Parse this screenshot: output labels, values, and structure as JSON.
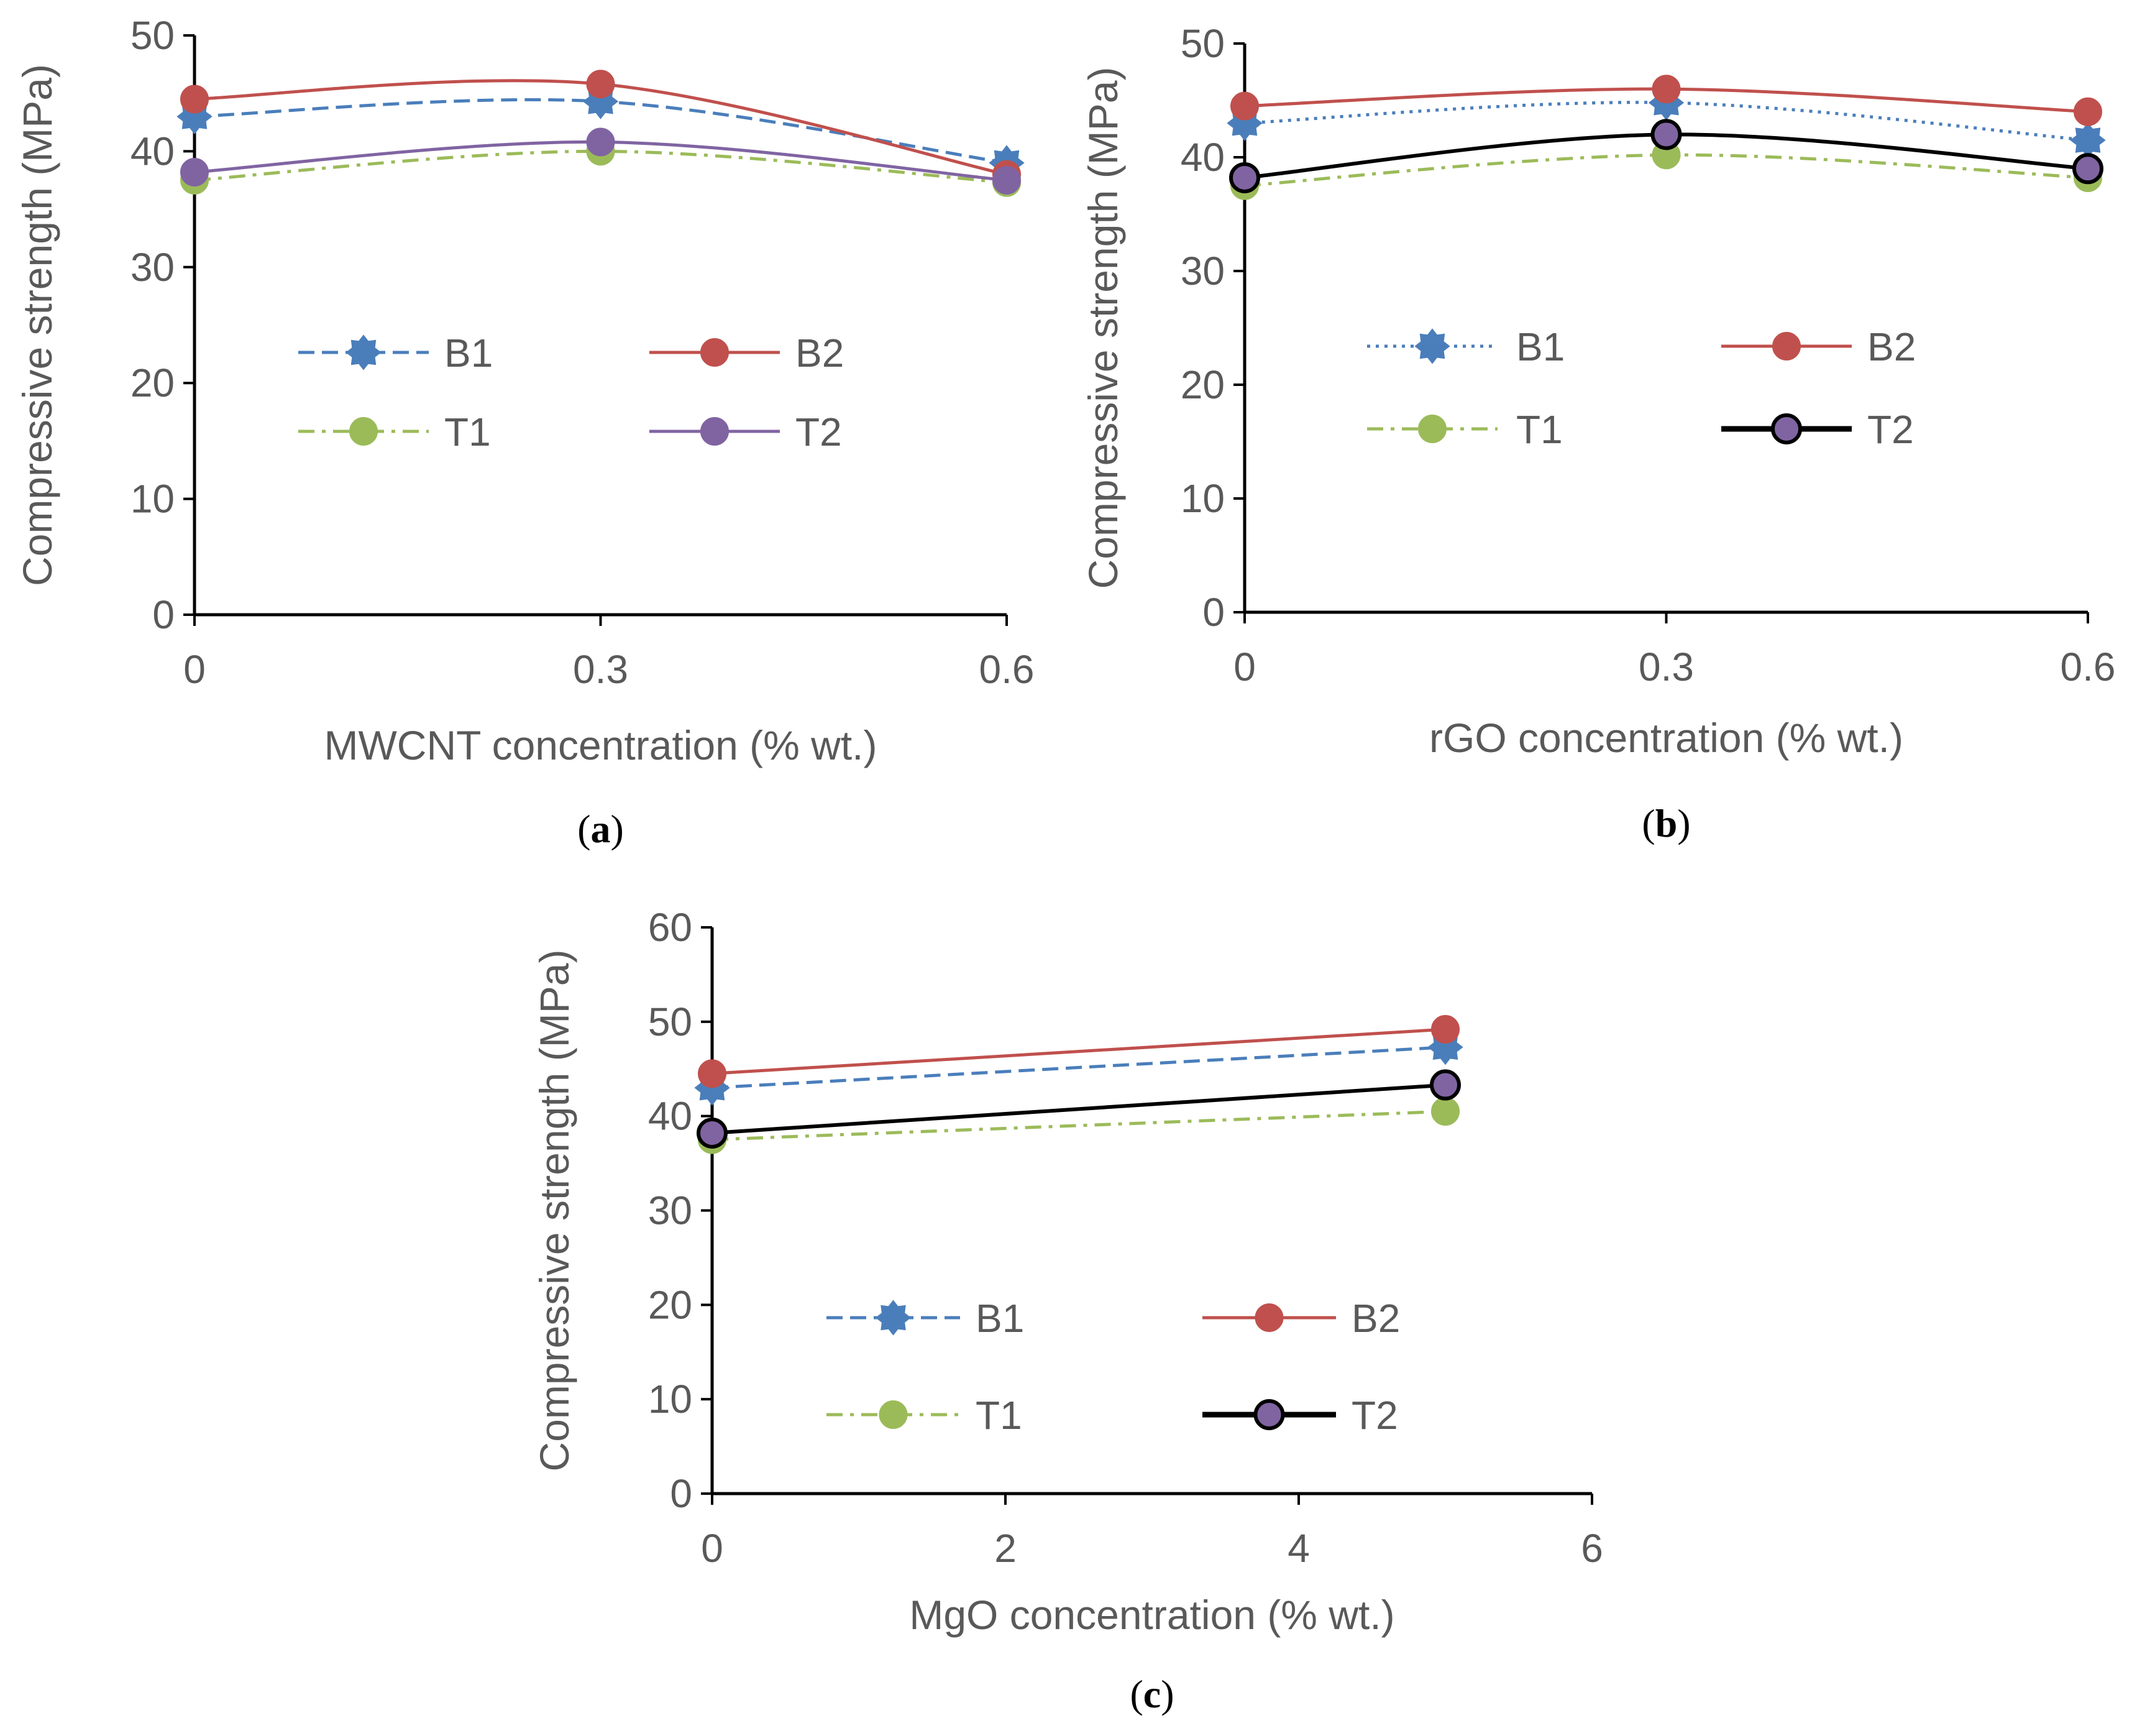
{
  "chart_data": [
    {
      "type": "line",
      "caption": {
        "open": "(",
        "letter": "a",
        "close": ")"
      },
      "xlabel": "MWCNT concentration (% wt.)",
      "ylabel": "Compressive strength (MPa)",
      "xlim": [
        0,
        0.6
      ],
      "ylim": [
        0,
        50
      ],
      "xticks": [
        0,
        0.3,
        0.6
      ],
      "xtick_labels": [
        "0",
        "0.3",
        "0.6"
      ],
      "yticks": [
        0,
        10,
        20,
        30,
        40,
        50
      ],
      "ytick_labels": [
        "0",
        "10",
        "20",
        "30",
        "40",
        "50"
      ],
      "smooth": true,
      "grid": false,
      "legend": "center, two columns",
      "series": [
        {
          "name": "B1",
          "x": [
            0,
            0.3,
            0.6
          ],
          "values": [
            43.0,
            44.3,
            39.0
          ],
          "color": "#4a7ebb",
          "dash": "dashed",
          "marker": "star"
        },
        {
          "name": "B2",
          "x": [
            0,
            0.3,
            0.6
          ],
          "values": [
            44.5,
            45.8,
            38.0
          ],
          "color": "#c0504d",
          "dash": "solid",
          "marker": "circle"
        },
        {
          "name": "T1",
          "x": [
            0,
            0.3,
            0.6
          ],
          "values": [
            37.5,
            40.0,
            37.3
          ],
          "color": "#9bbb59",
          "dash": "dashdot",
          "marker": "circle"
        },
        {
          "name": "T2",
          "x": [
            0,
            0.3,
            0.6
          ],
          "values": [
            38.2,
            40.8,
            37.5
          ],
          "color": "#8064a2",
          "dash": "solid",
          "marker": "circle"
        }
      ]
    },
    {
      "type": "line",
      "caption": {
        "open": "(",
        "letter": "b",
        "close": ")"
      },
      "xlabel": "rGO concentration (% wt.)",
      "ylabel": "Compressive strength (MPa)",
      "xlim": [
        0,
        0.6
      ],
      "ylim": [
        0,
        50
      ],
      "xticks": [
        0,
        0.3,
        0.6
      ],
      "xtick_labels": [
        "0",
        "0.3",
        "0.6"
      ],
      "yticks": [
        0,
        10,
        20,
        30,
        40,
        50
      ],
      "ytick_labels": [
        "0",
        "10",
        "20",
        "30",
        "40",
        "50"
      ],
      "smooth": true,
      "grid": false,
      "legend": "center, two columns",
      "series": [
        {
          "name": "B1",
          "x": [
            0,
            0.3,
            0.6
          ],
          "values": [
            43.0,
            44.8,
            41.5
          ],
          "color": "#4a7ebb",
          "dash": "dotted",
          "marker": "star"
        },
        {
          "name": "B2",
          "x": [
            0,
            0.3,
            0.6
          ],
          "values": [
            44.5,
            46.0,
            44.0
          ],
          "color": "#c0504d",
          "dash": "solid",
          "marker": "circle"
        },
        {
          "name": "T1",
          "x": [
            0,
            0.3,
            0.6
          ],
          "values": [
            37.5,
            40.2,
            38.2
          ],
          "color": "#9bbb59",
          "dash": "dashdot",
          "marker": "circle"
        },
        {
          "name": "T2",
          "x": [
            0,
            0.3,
            0.6
          ],
          "values": [
            38.2,
            42.0,
            39.0
          ],
          "color": "#000000",
          "fill": "#8064a2",
          "dash": "solid",
          "marker": "circle"
        }
      ]
    },
    {
      "type": "line",
      "caption": {
        "open": "(",
        "letter": "c",
        "close": ")"
      },
      "xlabel": "MgO concentration (% wt.)",
      "ylabel": "Compressive strength (MPa)",
      "xlim": [
        0,
        6
      ],
      "ylim": [
        0,
        60
      ],
      "xticks": [
        0,
        2,
        4,
        6
      ],
      "xtick_labels": [
        "0",
        "2",
        "4",
        "6"
      ],
      "yticks": [
        0,
        10,
        20,
        30,
        40,
        50,
        60
      ],
      "ytick_labels": [
        "0",
        "10",
        "20",
        "30",
        "40",
        "50",
        "60"
      ],
      "smooth": false,
      "grid": false,
      "legend": "center, two columns",
      "series": [
        {
          "name": "B1",
          "x": [
            0,
            5
          ],
          "values": [
            43.0,
            47.3
          ],
          "color": "#4a7ebb",
          "dash": "dashed",
          "marker": "star"
        },
        {
          "name": "B2",
          "x": [
            0,
            5
          ],
          "values": [
            44.5,
            49.2
          ],
          "color": "#c0504d",
          "dash": "solid",
          "marker": "circle"
        },
        {
          "name": "T1",
          "x": [
            0,
            5
          ],
          "values": [
            37.5,
            40.5
          ],
          "color": "#9bbb59",
          "dash": "dashdot",
          "marker": "circle"
        },
        {
          "name": "T2",
          "x": [
            0,
            5
          ],
          "values": [
            38.2,
            43.3
          ],
          "color": "#000000",
          "fill": "#8064a2",
          "dash": "solid",
          "marker": "circle"
        }
      ]
    }
  ]
}
